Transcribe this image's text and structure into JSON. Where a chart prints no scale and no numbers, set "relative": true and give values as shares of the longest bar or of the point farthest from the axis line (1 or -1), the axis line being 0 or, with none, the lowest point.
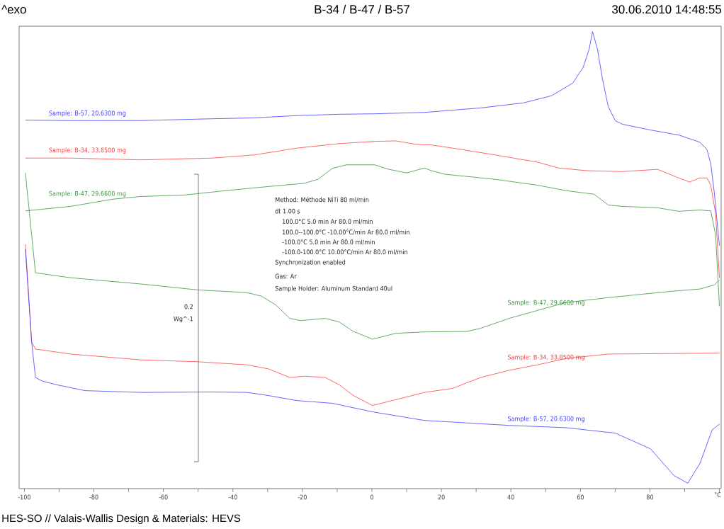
{
  "chart_data": {
    "type": "line",
    "title": "B-34 / B-47 / B-57",
    "xlabel": "°C",
    "relative": true,
    "xlim": [
      -101.5,
      100.5
    ],
    "xticks": [
      -100,
      {
        "value": -90,
        "label": null
      },
      -80,
      {
        "value": -70,
        "label": null
      },
      -60,
      {
        "value": -50,
        "label": null
      },
      -40,
      {
        "value": -30,
        "label": null
      },
      -20,
      {
        "value": -10,
        "label": null
      },
      0,
      {
        "value": 10,
        "label": null
      },
      20,
      {
        "value": 30,
        "label": null
      },
      40,
      {
        "value": 50,
        "label": null
      },
      60,
      {
        "value": 70,
        "label": null
      },
      80,
      {
        "value": 90,
        "label": null
      },
      {
        "value": 100,
        "label": null
      }
    ],
    "series": [
      {
        "name": "Sample: B-57, 20.6300 mg",
        "color": "#4040ff",
        "x": [
          -99.7,
          -86.7,
          -66.5,
          -46.0,
          -33.8,
          -21.6,
          -9.4,
          0.8,
          15.1,
          31.3,
          43.5,
          51.7,
          57.8,
          60.8,
          62.5,
          63.5,
          64.9,
          66.3,
          68.0,
          70.0,
          72.0,
          80.2,
          88.3,
          94.4,
          96.4,
          97.5,
          98.5,
          99.5,
          100
        ],
        "values": [
          0.804,
          0.803,
          0.803,
          0.807,
          0.809,
          0.814,
          0.817,
          0.818,
          0.821,
          0.831,
          0.842,
          0.858,
          0.886,
          0.921,
          0.961,
          1.0,
          0.961,
          0.897,
          0.834,
          0.803,
          0.795,
          0.782,
          0.771,
          0.755,
          0.739,
          0.708,
          0.645,
          0.566,
          0.526
        ]
      },
      {
        "name": "Sample: B-34, 33.8500 mg",
        "color": "#ff4040",
        "x": [
          -99.7,
          -86.7,
          -66.5,
          -46.0,
          -33.8,
          -21.6,
          -9.4,
          0.8,
          6.9,
          13.0,
          17.1,
          23.2,
          35.4,
          47.6,
          53.7,
          61.9,
          72.0,
          82.2,
          88.3,
          91.4,
          94.4,
          96.4,
          97.5,
          98.9,
          100
        ],
        "values": [
          0.72,
          0.72,
          0.716,
          0.72,
          0.727,
          0.742,
          0.752,
          0.757,
          0.758,
          0.75,
          0.749,
          0.742,
          0.727,
          0.711,
          0.698,
          0.692,
          0.69,
          0.695,
          0.676,
          0.667,
          0.676,
          0.676,
          0.66,
          0.597,
          0.455
        ]
      },
      {
        "name": "Sample: B-47, 29.6600 mg",
        "color": "#3c963c",
        "x": [
          -99.7,
          -86.7,
          -74.5,
          -66.5,
          -54.1,
          -41.9,
          -29.7,
          -19.5,
          -15.5,
          -11.4,
          -7.3,
          0.8,
          4.9,
          10.0,
          15.1,
          17.1,
          21.2,
          35.4,
          47.6,
          55.7,
          63.9,
          68.0,
          72.0,
          82.2,
          88.3,
          94.4,
          97.5,
          98.9,
          100
        ],
        "values": [
          0.603,
          0.613,
          0.629,
          0.635,
          0.638,
          0.648,
          0.657,
          0.664,
          0.673,
          0.697,
          0.705,
          0.705,
          0.695,
          0.687,
          0.698,
          0.692,
          0.684,
          0.673,
          0.66,
          0.648,
          0.64,
          0.616,
          0.613,
          0.61,
          0.602,
          0.605,
          0.603,
          0.55,
          0.392
        ]
      },
      {
        "name": "Sample: B-47, 29.6600 mg",
        "color": "#3c963c",
        "x": [
          -99.7,
          -97.9,
          -96.8,
          -86.7,
          -66.3,
          -50.1,
          -35.8,
          -31.7,
          -27.7,
          -23.6,
          -20.5,
          -13.4,
          -9.4,
          -5.3,
          0.2,
          6.9,
          15.1,
          27.3,
          31.3,
          39.5,
          55.7,
          68.0,
          86.3,
          94.4,
          98.5,
          100
        ],
        "values": [
          0.687,
          0.55,
          0.466,
          0.455,
          0.441,
          0.428,
          0.422,
          0.414,
          0.395,
          0.365,
          0.36,
          0.365,
          0.357,
          0.336,
          0.319,
          0.332,
          0.335,
          0.336,
          0.343,
          0.365,
          0.4,
          0.411,
          0.425,
          0.43,
          0.439,
          0.45
        ]
      },
      {
        "name": "Sample: B-34, 33.8500 mg",
        "color": "#ff4040",
        "x": [
          -99.7,
          -97.9,
          -96.8,
          -86.7,
          -66.3,
          -50.1,
          -35.8,
          -29.7,
          -23.6,
          -19.5,
          -13.4,
          -9.4,
          -5.3,
          0.2,
          6.9,
          15.1,
          23.2,
          31.3,
          39.5,
          47.6,
          55.7,
          68.0,
          100
        ],
        "values": [
          0.529,
          0.313,
          0.297,
          0.286,
          0.273,
          0.269,
          0.262,
          0.253,
          0.234,
          0.237,
          0.234,
          0.218,
          0.194,
          0.172,
          0.185,
          0.201,
          0.21,
          0.234,
          0.25,
          0.262,
          0.276,
          0.286,
          0.288
        ]
      },
      {
        "name": "Sample: B-57, 20.6300 mg",
        "color": "#4040ff",
        "x": [
          -99.7,
          -97.9,
          -96.8,
          -94.8,
          -90.7,
          -82.6,
          -66.3,
          -46.0,
          -35.8,
          -29.7,
          -21.6,
          -11.4,
          0.2,
          15.1,
          39.5,
          55.7,
          70.0,
          80.2,
          86.9,
          90.9,
          94.4,
          97.9,
          100
        ],
        "values": [
          0.518,
          0.313,
          0.234,
          0.226,
          0.218,
          0.205,
          0.201,
          0.202,
          0.201,
          0.194,
          0.183,
          0.177,
          0.158,
          0.139,
          0.128,
          0.123,
          0.111,
          0.076,
          0.017,
          0.0,
          0.044,
          0.118,
          0.131
        ]
      }
    ],
    "annotations": [
      "^exo",
      "30.06.2010 14:48:55",
      "Method: Méthode NiTi 80 ml/min",
      "dt 1.00 s",
      "100.0°C 5.0 min       Ar 80.0 ml/min",
      "100.0--100.0°C -10.00°C/min      Ar 80.0 ml/min",
      "-100.0°C 5.0 min                   Ar 80.0 ml/min",
      "-100.0-100.0°C 10.00°C/min       Ar 80.0 ml/min",
      "Synchronization enabled",
      "Gas: Ar",
      "Sample Holder: Aluminum Standard 40ul",
      "0.2",
      "Wg^-1",
      "HES-SO // Valais-Wallis  Design & Materials: HEVS"
    ]
  }
}
